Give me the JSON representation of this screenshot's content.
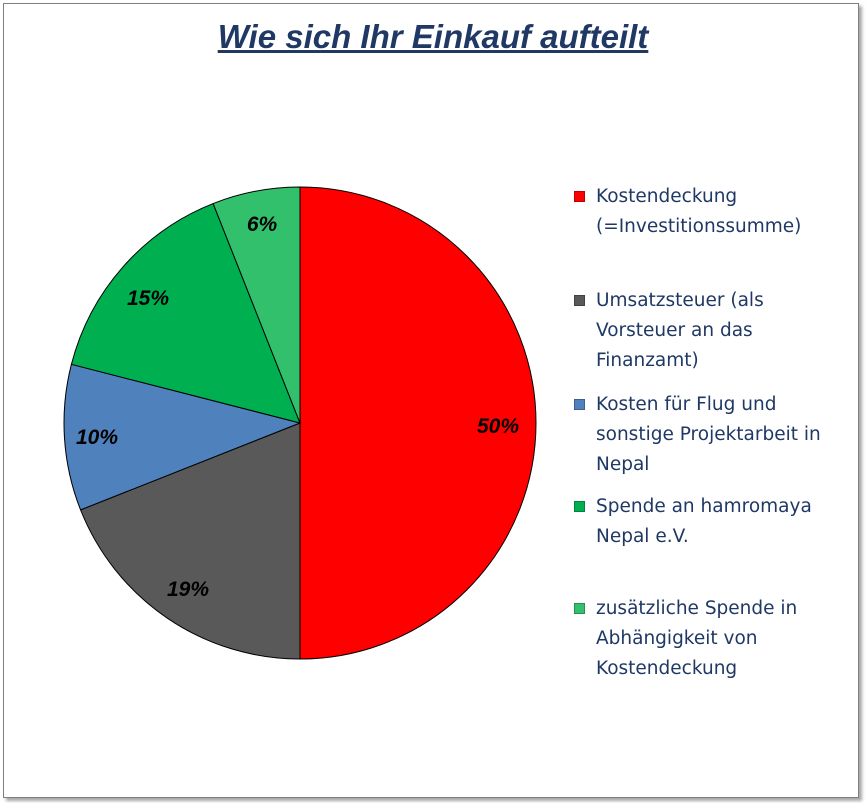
{
  "chart_data": {
    "type": "pie",
    "title": "Wie sich Ihr Einkauf aufteilt",
    "slices": [
      {
        "name": "Kostendeckung\n(=Investitionssumme)",
        "value": 50,
        "label": "50%",
        "color": "#ff0000"
      },
      {
        "name": "Umsatzsteuer (als\nVorsteuer an das\nFinanzamt)",
        "value": 19,
        "label": "19%",
        "color": "#595959"
      },
      {
        "name": "Kosten für Flug und\nsonstige Projektarbeit in\nNepal",
        "value": 10,
        "label": "10%",
        "color": "#4f81bd"
      },
      {
        "name": "Spende an hamromaya\nNepal e.V.",
        "value": 15,
        "label": "15%",
        "color": "#00b050"
      },
      {
        "name": "zusätzliche Spende in\nAbhängigkeit von\nKostendeckung",
        "value": 6,
        "label": "6%",
        "color": "#33c06c"
      }
    ],
    "legend_position": "right"
  }
}
